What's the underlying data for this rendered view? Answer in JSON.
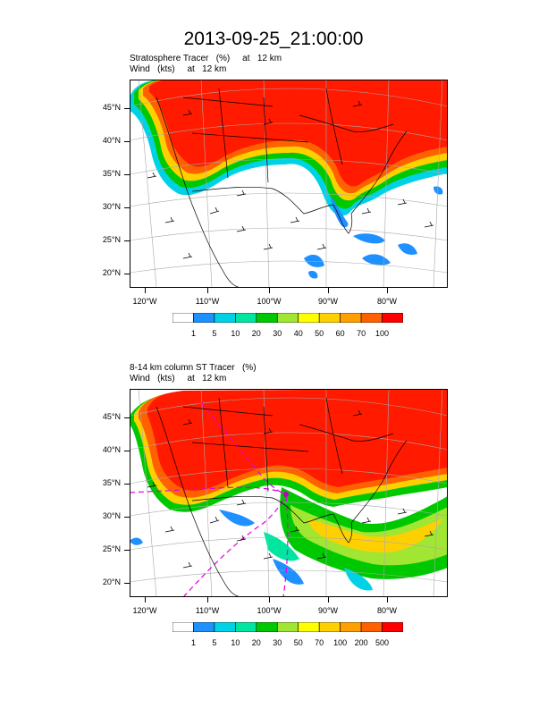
{
  "title": "2013-09-25_21:00:00",
  "panels": [
    {
      "subtitle_line1": "Stratosphere Tracer   (%)     at   12 km",
      "subtitle_line2": "Wind   (kts)     at   12 km",
      "lat_labels": [
        "45°N",
        "40°N",
        "35°N",
        "30°N",
        "25°N",
        "20°N"
      ],
      "lon_labels": [
        "120°W",
        "110°W",
        "100°W",
        "90°W",
        "80°W"
      ],
      "colorbar": {
        "colors": [
          "#ffffff",
          "#1e90ff",
          "#00d2e6",
          "#00e6a0",
          "#00c800",
          "#a0e632",
          "#ffff00",
          "#ffd000",
          "#ffa000",
          "#ff6000",
          "#ff0000"
        ],
        "labels": [
          "1",
          "5",
          "10",
          "20",
          "30",
          "40",
          "50",
          "60",
          "70",
          "100"
        ]
      }
    },
    {
      "subtitle_line1": "8-14 km column ST Tracer   (%)",
      "subtitle_line2": "Wind   (kts)     at   12 km",
      "lat_labels": [
        "45°N",
        "40°N",
        "35°N",
        "30°N",
        "25°N",
        "20°N"
      ],
      "lon_labels": [
        "120°W",
        "110°W",
        "100°W",
        "90°W",
        "80°W"
      ],
      "colorbar": {
        "colors": [
          "#ffffff",
          "#1e90ff",
          "#00d2e6",
          "#00e6a0",
          "#00c800",
          "#a0e632",
          "#ffff00",
          "#ffd000",
          "#ffa000",
          "#ff6000",
          "#ff0000"
        ],
        "labels": [
          "1",
          "5",
          "10",
          "20",
          "30",
          "50",
          "70",
          "100",
          "200",
          "500"
        ]
      }
    }
  ]
}
